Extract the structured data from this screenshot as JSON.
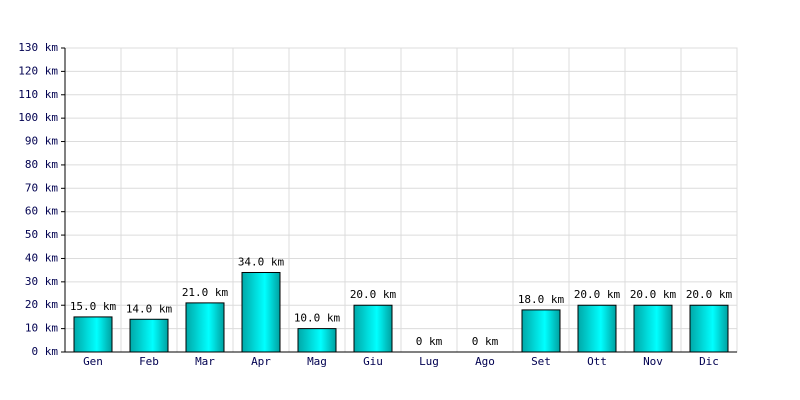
{
  "chart_data": {
    "type": "bar",
    "categories": [
      "Gen",
      "Feb",
      "Mar",
      "Apr",
      "Mag",
      "Giu",
      "Lug",
      "Ago",
      "Set",
      "Ott",
      "Nov",
      "Dic"
    ],
    "values": [
      15,
      14,
      21,
      34,
      10,
      20,
      0,
      0,
      18,
      20,
      20,
      20
    ],
    "value_labels": [
      "15.0 km",
      "14.0 km",
      "21.0 km",
      "34.0 km",
      "10.0 km",
      "20.0 km",
      "0 km",
      "0 km",
      "18.0 km",
      "20.0 km",
      "20.0 km",
      "20.0 km"
    ],
    "color": "#00e0e0",
    "ylim": [
      0,
      130
    ],
    "yticks": [
      {
        "value": 0,
        "label": "0 km"
      },
      {
        "value": 10,
        "label": "10 km"
      },
      {
        "value": 20,
        "label": "20 km"
      },
      {
        "value": 30,
        "label": "30 km"
      },
      {
        "value": 40,
        "label": "40 km"
      },
      {
        "value": 50,
        "label": "50 km"
      },
      {
        "value": 60,
        "label": "60 km"
      },
      {
        "value": 70,
        "label": "70 km"
      },
      {
        "value": 80,
        "label": "80 km"
      },
      {
        "value": 90,
        "label": "90 km"
      },
      {
        "value": 100,
        "label": "100 km"
      },
      {
        "value": 110,
        "label": "110 km"
      },
      {
        "value": 120,
        "label": "120 km"
      },
      {
        "value": 130,
        "label": "130 km"
      }
    ],
    "grid": true
  }
}
